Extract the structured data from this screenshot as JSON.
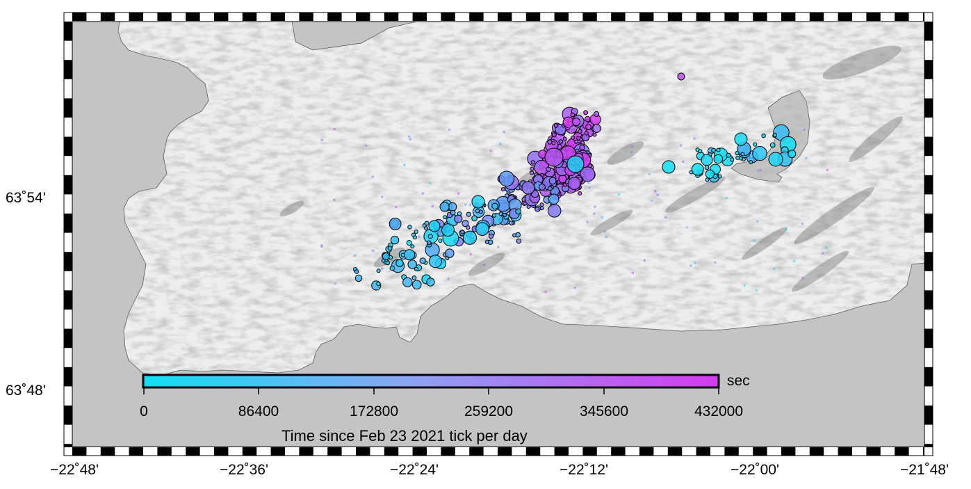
{
  "map": {
    "lon_labels": [
      "−22˚48'",
      "−22˚36'",
      "−22˚24'",
      "−22˚12'",
      "−22˚00'",
      "−21˚48'"
    ],
    "lat_labels": [
      "63˚54'",
      "63˚48'"
    ],
    "colors": {
      "sea": "#c4c4c4",
      "land": "#eeeeee",
      "cold": "#10dff5",
      "mid": "#9fa0f2",
      "hot": "#d43bf0",
      "outline": "#000000"
    }
  },
  "colorbar": {
    "ticks": [
      "0",
      "86400",
      "172800",
      "259200",
      "345600",
      "432000"
    ],
    "unit": "sec",
    "label": "Time since Feb 23 2021 tick per day"
  }
}
